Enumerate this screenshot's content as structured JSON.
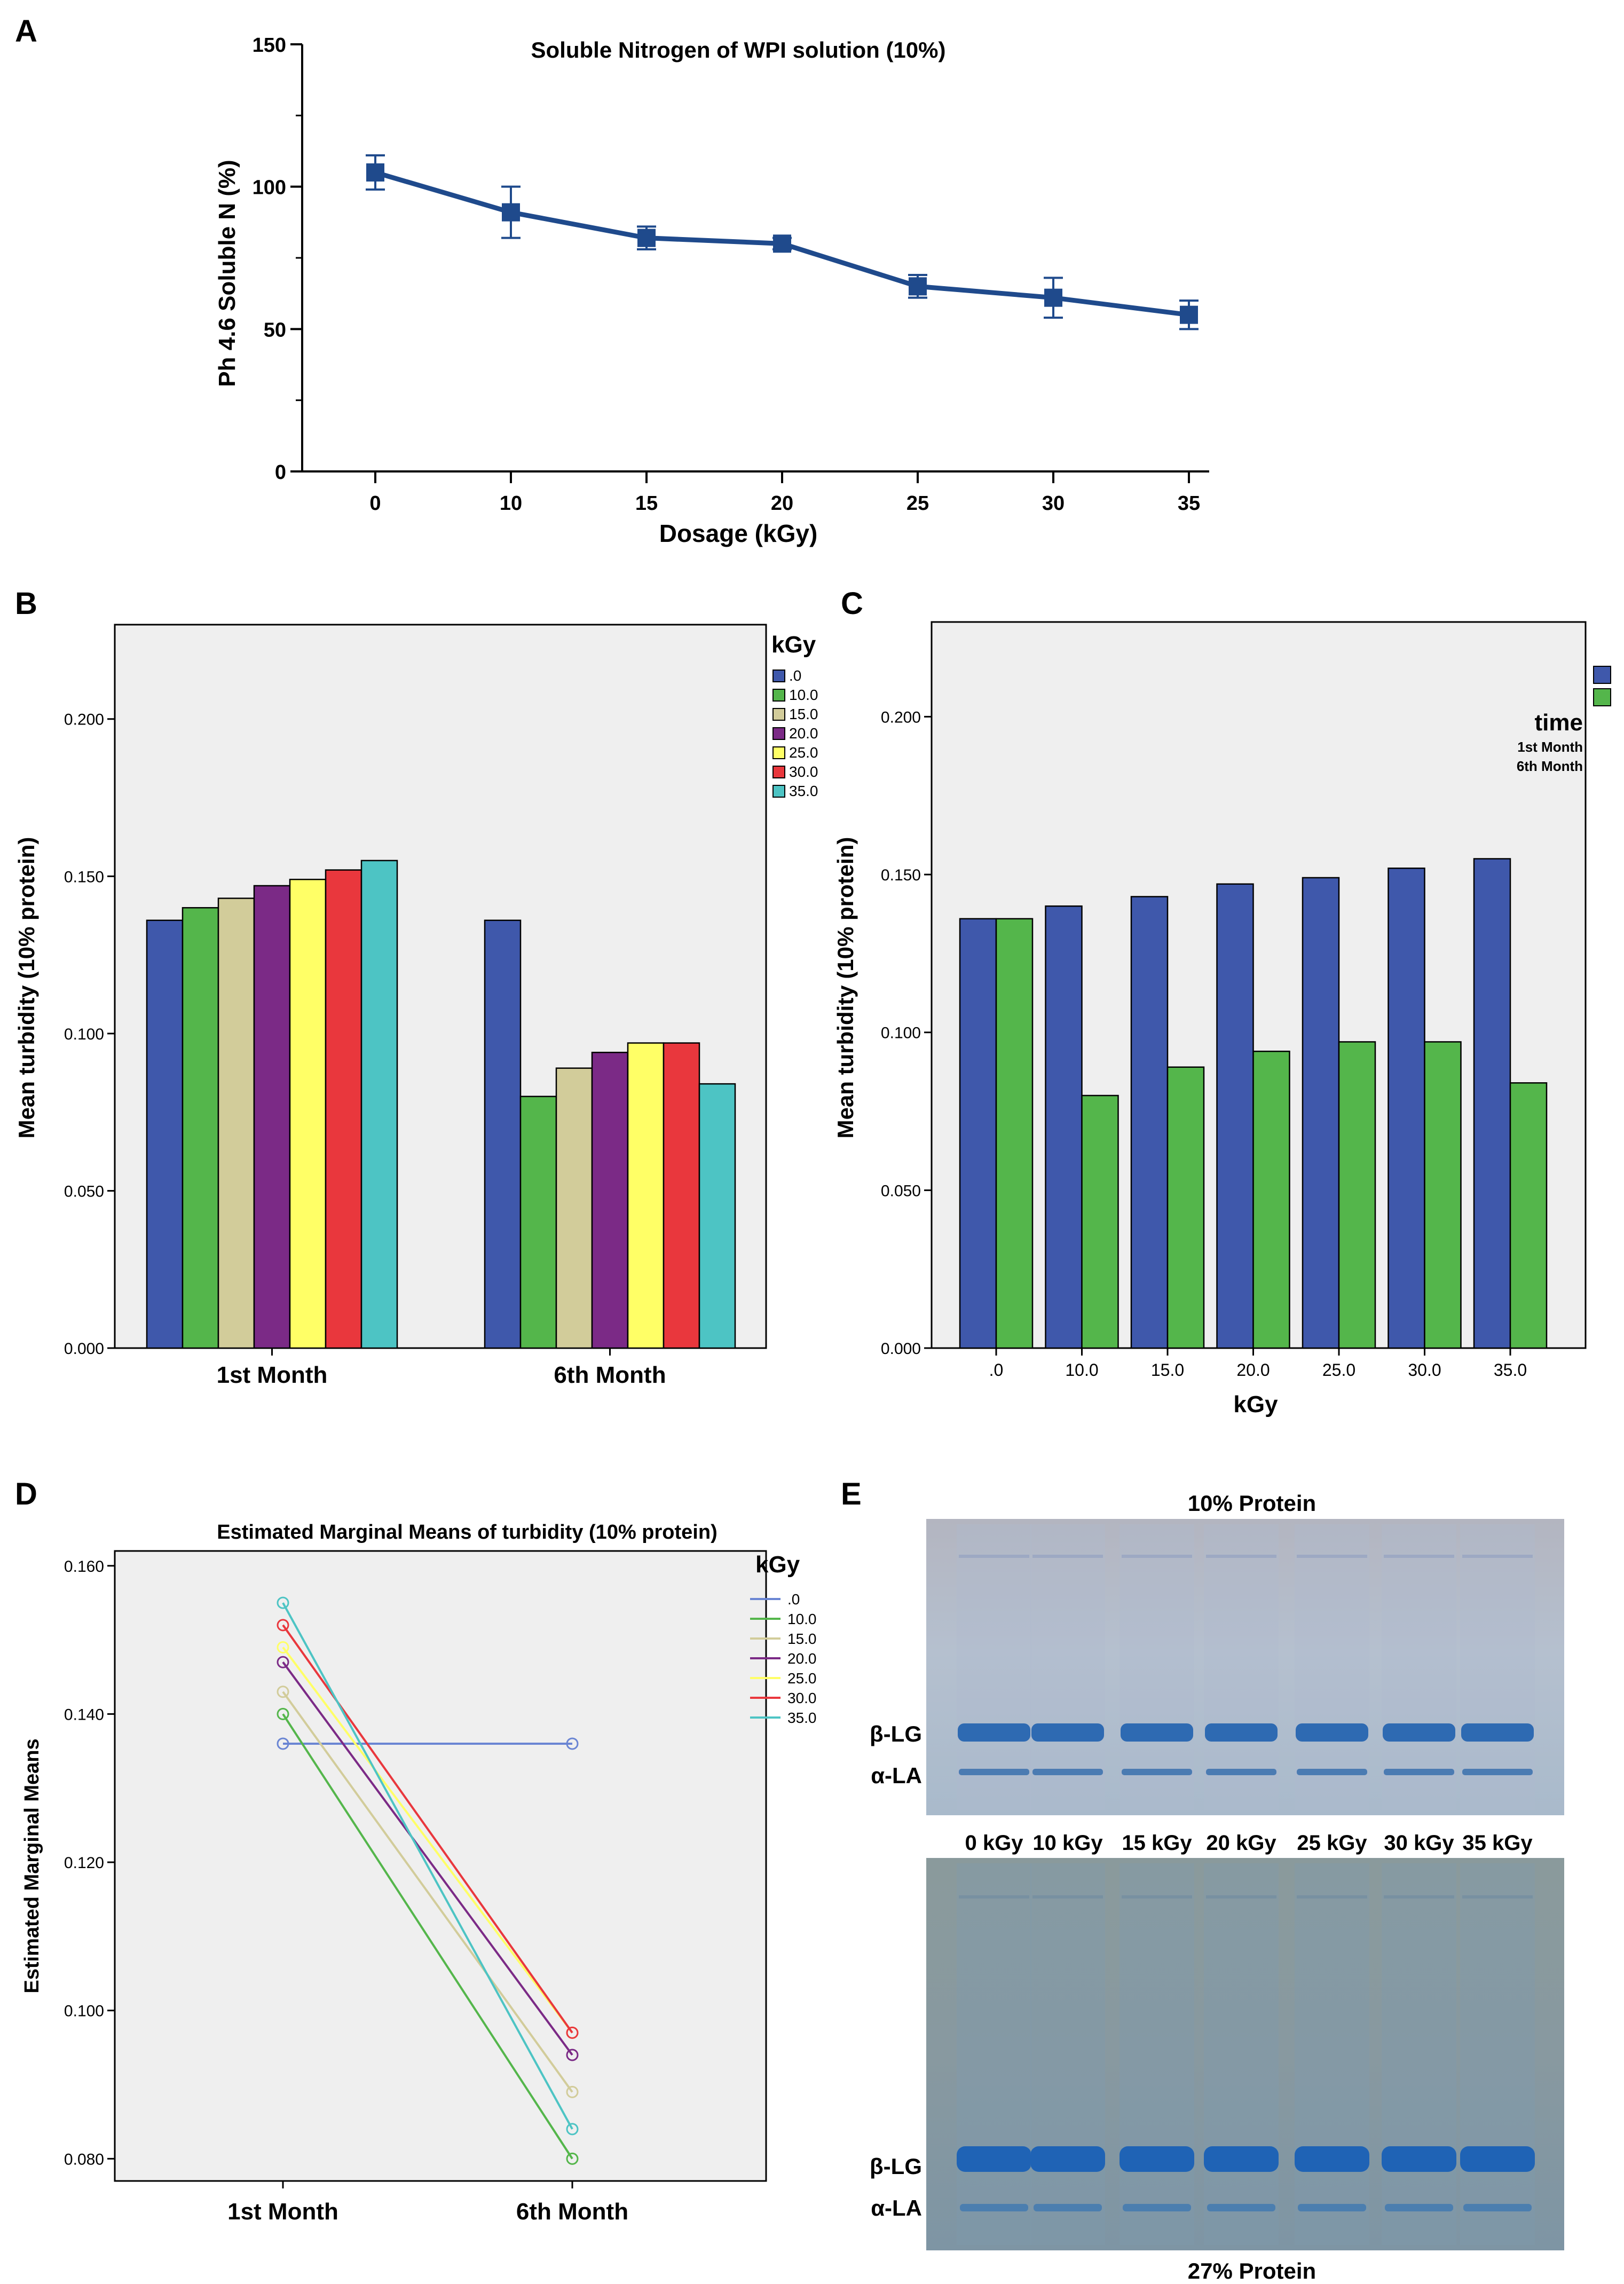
{
  "panel_labels": {
    "a": "A",
    "b": "B",
    "c": "C",
    "d": "D",
    "e": "E"
  },
  "colors": {
    "navy": "#1f4a8c",
    "blue": "#3f58ab",
    "green": "#54b64b",
    "tan": "#d2cc9a",
    "purple": "#7b2a86",
    "yellow": "#ffff66",
    "red": "#e9373d",
    "teal": "#4dc4c4",
    "plot_bg": "#efefef",
    "d_blue": "#6a85d3"
  },
  "chart_data": [
    {
      "id": "A",
      "type": "line",
      "title": "Soluble Nitrogen of WPI solution (10%)",
      "xlabel": "Dosage (kGy)",
      "ylabel": "Ph 4.6 Soluble N (%)",
      "categories": [
        "0",
        "10",
        "15",
        "20",
        "25",
        "30",
        "35"
      ],
      "values": [
        105,
        91,
        82,
        80,
        65,
        61,
        55
      ],
      "err": [
        6,
        9,
        4,
        2,
        4,
        7,
        5
      ],
      "ylim": [
        0,
        150
      ],
      "yticks": [
        "0",
        "50",
        "100",
        "150"
      ]
    },
    {
      "id": "B",
      "type": "bar",
      "ylabel": "Mean turbidity (10% protein)",
      "legend_title": "kGy",
      "categories": [
        "1st Month",
        "6th Month"
      ],
      "series": [
        {
          "name": ".0",
          "values": [
            0.136,
            0.136
          ]
        },
        {
          "name": "10.0",
          "values": [
            0.14,
            0.08
          ]
        },
        {
          "name": "15.0",
          "values": [
            0.143,
            0.089
          ]
        },
        {
          "name": "20.0",
          "values": [
            0.147,
            0.094
          ]
        },
        {
          "name": "25.0",
          "values": [
            0.149,
            0.097
          ]
        },
        {
          "name": "30.0",
          "values": [
            0.152,
            0.097
          ]
        },
        {
          "name": "35.0",
          "values": [
            0.155,
            0.084
          ]
        }
      ],
      "ylim": [
        0,
        0.23
      ],
      "yticks": [
        "0.000",
        "0.050",
        "0.100",
        "0.150",
        "0.200"
      ]
    },
    {
      "id": "C",
      "type": "bar",
      "ylabel": "Mean turbidity (10% protein)",
      "xlabel": "kGy",
      "legend_title": "time",
      "categories": [
        ".0",
        "10.0",
        "15.0",
        "20.0",
        "25.0",
        "30.0",
        "35.0"
      ],
      "series": [
        {
          "name": "1st Month",
          "values": [
            0.136,
            0.14,
            0.143,
            0.147,
            0.149,
            0.152,
            0.155
          ]
        },
        {
          "name": "6th Month",
          "values": [
            0.136,
            0.08,
            0.089,
            0.094,
            0.097,
            0.097,
            0.084
          ]
        }
      ],
      "ylim": [
        0,
        0.23
      ],
      "yticks": [
        "0.000",
        "0.050",
        "0.100",
        "0.150",
        "0.200"
      ]
    },
    {
      "id": "D",
      "type": "line",
      "title": "Estimated Marginal Means of turbidity (10% protein)",
      "ylabel": "Estimated Marginal Means",
      "legend_title": "kGy",
      "categories": [
        "1st Month",
        "6th Month"
      ],
      "series": [
        {
          "name": ".0",
          "values": [
            0.136,
            0.136
          ]
        },
        {
          "name": "10.0",
          "values": [
            0.14,
            0.08
          ]
        },
        {
          "name": "15.0",
          "values": [
            0.143,
            0.089
          ]
        },
        {
          "name": "20.0",
          "values": [
            0.147,
            0.094
          ]
        },
        {
          "name": "25.0",
          "values": [
            0.149,
            0.097
          ]
        },
        {
          "name": "30.0",
          "values": [
            0.152,
            0.097
          ]
        },
        {
          "name": "35.0",
          "values": [
            0.155,
            0.084
          ]
        }
      ],
      "ylim": [
        0.077,
        0.162
      ],
      "yticks": [
        "0.080",
        "0.100",
        "0.120",
        "0.140",
        "0.160"
      ]
    }
  ],
  "gel": {
    "top_title": "10% Protein",
    "bottom_title": "27% Protein",
    "lanes": [
      "0 kGy",
      "10 kGy",
      "15 kGy",
      "20 kGy",
      "25 kGy",
      "30 kGy",
      "35 kGy"
    ],
    "band_labels": [
      "β-LG",
      "α-LA"
    ]
  }
}
